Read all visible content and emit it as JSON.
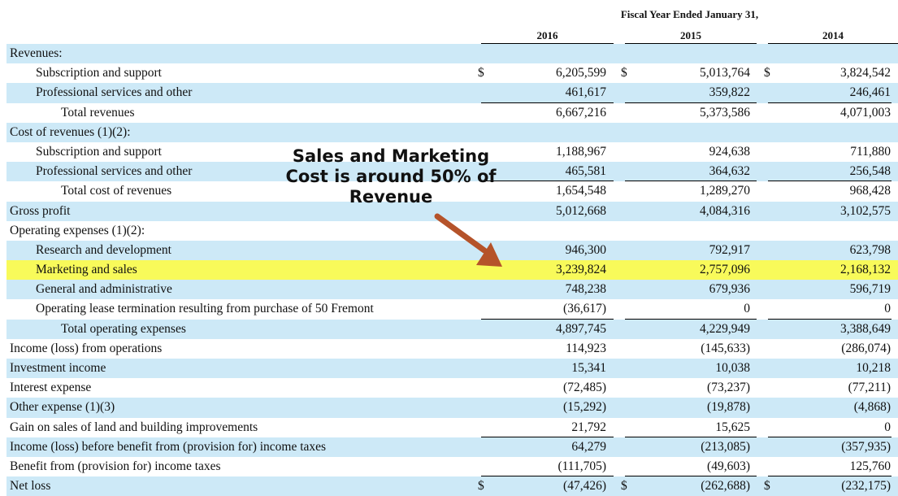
{
  "header": {
    "title": "Fiscal Year Ended January 31,",
    "years": [
      "2016",
      "2015",
      "2014"
    ]
  },
  "rows": [
    {
      "label": "Revenues:",
      "indent": 0,
      "values": [
        "",
        "",
        ""
      ],
      "dollar": false,
      "bg": "blue",
      "rule": false
    },
    {
      "label": "Subscription and support",
      "indent": 1,
      "values": [
        "6,205,599",
        "5,013,764",
        "3,824,542"
      ],
      "dollar": true,
      "bg": "white",
      "rule": false
    },
    {
      "label": "Professional services and other",
      "indent": 1,
      "values": [
        "461,617",
        "359,822",
        "246,461"
      ],
      "dollar": false,
      "bg": "blue",
      "rule": true
    },
    {
      "label": "Total revenues",
      "indent": 2,
      "values": [
        "6,667,216",
        "5,373,586",
        "4,071,003"
      ],
      "dollar": false,
      "bg": "white",
      "rule": false
    },
    {
      "label": "Cost of revenues (1)(2):",
      "indent": 0,
      "values": [
        "",
        "",
        ""
      ],
      "dollar": false,
      "bg": "blue",
      "rule": false
    },
    {
      "label": "Subscription and support",
      "indent": 1,
      "values": [
        "1,188,967",
        "924,638",
        "711,880"
      ],
      "dollar": false,
      "bg": "white",
      "rule": false
    },
    {
      "label": "Professional services and other",
      "indent": 1,
      "values": [
        "465,581",
        "364,632",
        "256,548"
      ],
      "dollar": false,
      "bg": "blue",
      "rule": true
    },
    {
      "label": "Total cost of revenues",
      "indent": 2,
      "values": [
        "1,654,548",
        "1,289,270",
        "968,428"
      ],
      "dollar": false,
      "bg": "white",
      "rule": false
    },
    {
      "label": "Gross profit",
      "indent": 0,
      "values": [
        "5,012,668",
        "4,084,316",
        "3,102,575"
      ],
      "dollar": false,
      "bg": "blue",
      "rule": false
    },
    {
      "label": "Operating expenses (1)(2):",
      "indent": 0,
      "values": [
        "",
        "",
        ""
      ],
      "dollar": false,
      "bg": "white",
      "rule": false
    },
    {
      "label": "Research and development",
      "indent": 1,
      "values": [
        "946,300",
        "792,917",
        "623,798"
      ],
      "dollar": false,
      "bg": "blue",
      "rule": false
    },
    {
      "label": "Marketing and sales",
      "indent": 1,
      "values": [
        "3,239,824",
        "2,757,096",
        "2,168,132"
      ],
      "dollar": false,
      "bg": "hl",
      "rule": false
    },
    {
      "label": "General and administrative",
      "indent": 1,
      "values": [
        "748,238",
        "679,936",
        "596,719"
      ],
      "dollar": false,
      "bg": "blue",
      "rule": false
    },
    {
      "label": "Operating lease termination resulting from purchase of 50 Fremont",
      "indent": 1,
      "values": [
        "(36,617)",
        "0",
        "0"
      ],
      "dollar": false,
      "bg": "white",
      "rule": true
    },
    {
      "label": "Total operating expenses",
      "indent": 2,
      "values": [
        "4,897,745",
        "4,229,949",
        "3,388,649"
      ],
      "dollar": false,
      "bg": "blue",
      "rule": false
    },
    {
      "label": "Income (loss) from operations",
      "indent": 0,
      "values": [
        "114,923",
        "(145,633)",
        "(286,074)"
      ],
      "dollar": false,
      "bg": "white",
      "rule": false
    },
    {
      "label": "Investment income",
      "indent": 0,
      "values": [
        "15,341",
        "10,038",
        "10,218"
      ],
      "dollar": false,
      "bg": "blue",
      "rule": false
    },
    {
      "label": "Interest expense",
      "indent": 0,
      "values": [
        "(72,485)",
        "(73,237)",
        "(77,211)"
      ],
      "dollar": false,
      "bg": "white",
      "rule": false
    },
    {
      "label": "Other expense (1)(3)",
      "indent": 0,
      "values": [
        "(15,292)",
        "(19,878)",
        "(4,868)"
      ],
      "dollar": false,
      "bg": "blue",
      "rule": false
    },
    {
      "label": "Gain on sales of land and building improvements",
      "indent": 0,
      "values": [
        "21,792",
        "15,625",
        "0"
      ],
      "dollar": false,
      "bg": "white",
      "rule": true
    },
    {
      "label": "Income (loss) before benefit from (provision for) income taxes",
      "indent": 0,
      "values": [
        "64,279",
        "(213,085)",
        "(357,935)"
      ],
      "dollar": false,
      "bg": "blue",
      "rule": false
    },
    {
      "label": "Benefit from (provision for) income taxes",
      "indent": 0,
      "values": [
        "(111,705)",
        "(49,603)",
        "125,760"
      ],
      "dollar": false,
      "bg": "white",
      "rule": true
    },
    {
      "label": "Net loss",
      "indent": 0,
      "values": [
        "(47,426)",
        "(262,688)",
        "(232,175)"
      ],
      "dollar": true,
      "bg": "blue",
      "rule": false
    }
  ],
  "dollar_sign": "$",
  "annotation": {
    "text_lines": [
      "Sales and Marketing",
      "Cost is around 50% of",
      "Revenue"
    ],
    "arrow_color": "#b5532a"
  }
}
